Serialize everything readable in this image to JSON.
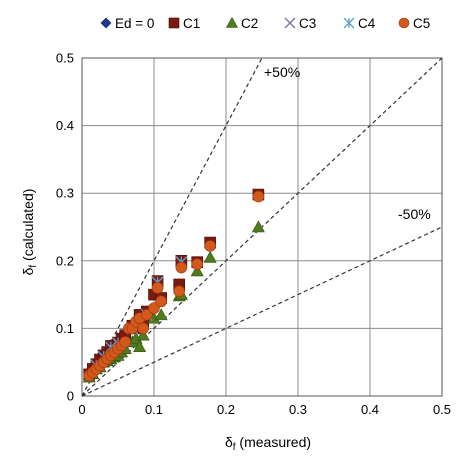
{
  "chart_data": {
    "type": "scatter",
    "title": "",
    "xlabel_main": "δ",
    "xlabel_sub": "f",
    "xlabel_rest": " (measured)",
    "ylabel_main": "δ",
    "ylabel_sub": "f",
    "ylabel_rest": " (calculated)",
    "xlim": [
      0,
      0.5
    ],
    "ylim": [
      0,
      0.5
    ],
    "x_ticks": [
      "0",
      "0.1",
      "0.2",
      "0.3",
      "0.4",
      "0.5"
    ],
    "y_ticks": [
      "0",
      "0.1",
      "0.2",
      "0.3",
      "0.4",
      "0.5"
    ],
    "tick_values": [
      0,
      0.1,
      0.2,
      0.3,
      0.4,
      0.5
    ],
    "grid": true,
    "legend_position": "top",
    "reference_lines": [
      {
        "label": "+50%",
        "slope": 2,
        "style": "dashed"
      },
      {
        "label": "",
        "slope": 1,
        "style": "dashed"
      },
      {
        "label": "-50%",
        "slope": 0.5,
        "style": "dashed"
      }
    ],
    "series": [
      {
        "name": "Ed = 0",
        "marker": "diamond",
        "color": "#1f3a8a",
        "x": [
          0.01,
          0.015,
          0.02,
          0.025,
          0.03,
          0.035,
          0.04,
          0.045,
          0.05,
          0.055,
          0.06,
          0.07,
          0.075,
          0.08,
          0.085,
          0.09,
          0.1,
          0.105,
          0.11,
          0.135,
          0.138,
          0.16,
          0.178,
          0.245
        ],
        "y": [
          0.033,
          0.04,
          0.048,
          0.055,
          0.06,
          0.065,
          0.075,
          0.07,
          0.08,
          0.085,
          0.09,
          0.105,
          0.1,
          0.12,
          0.11,
          0.125,
          0.15,
          0.17,
          0.145,
          0.165,
          0.2,
          0.198,
          0.227,
          0.298
        ]
      },
      {
        "name": "C1",
        "marker": "square",
        "color": "#7b1a10",
        "x": [
          0.01,
          0.015,
          0.02,
          0.025,
          0.03,
          0.035,
          0.04,
          0.045,
          0.05,
          0.055,
          0.06,
          0.07,
          0.075,
          0.08,
          0.085,
          0.09,
          0.1,
          0.105,
          0.11,
          0.135,
          0.138,
          0.16,
          0.178,
          0.245
        ],
        "y": [
          0.032,
          0.04,
          0.047,
          0.054,
          0.06,
          0.065,
          0.074,
          0.07,
          0.079,
          0.085,
          0.09,
          0.104,
          0.1,
          0.12,
          0.11,
          0.125,
          0.15,
          0.17,
          0.145,
          0.165,
          0.2,
          0.198,
          0.227,
          0.298
        ]
      },
      {
        "name": "C2",
        "marker": "triangle",
        "color": "#4f7a1e",
        "x": [
          0.01,
          0.015,
          0.02,
          0.025,
          0.03,
          0.035,
          0.04,
          0.045,
          0.05,
          0.055,
          0.06,
          0.07,
          0.075,
          0.08,
          0.085,
          0.1,
          0.11,
          0.135,
          0.138,
          0.16,
          0.178,
          0.245
        ],
        "y": [
          0.028,
          0.033,
          0.04,
          0.043,
          0.05,
          0.052,
          0.055,
          0.058,
          0.06,
          0.065,
          0.07,
          0.08,
          0.085,
          0.073,
          0.09,
          0.115,
          0.12,
          0.148,
          0.15,
          0.185,
          0.205,
          0.25
        ]
      },
      {
        "name": "C3",
        "marker": "x",
        "color": "#7b6fb0",
        "x": [
          0.02,
          0.03,
          0.04,
          0.05,
          0.07,
          0.09,
          0.105,
          0.138
        ],
        "y": [
          0.045,
          0.058,
          0.072,
          0.078,
          0.1,
          0.12,
          0.168,
          0.198
        ]
      },
      {
        "name": "C4",
        "marker": "star",
        "color": "#5aa0c8",
        "x": [
          0.02,
          0.03,
          0.04,
          0.05,
          0.07,
          0.09,
          0.105,
          0.138
        ],
        "y": [
          0.045,
          0.058,
          0.072,
          0.078,
          0.1,
          0.12,
          0.168,
          0.198
        ]
      },
      {
        "name": "C5",
        "marker": "circle",
        "color": "#d2581b",
        "x": [
          0.01,
          0.015,
          0.02,
          0.025,
          0.03,
          0.035,
          0.04,
          0.045,
          0.05,
          0.055,
          0.06,
          0.065,
          0.07,
          0.075,
          0.08,
          0.085,
          0.09,
          0.1,
          0.105,
          0.11,
          0.135,
          0.138,
          0.16,
          0.178,
          0.245
        ],
        "y": [
          0.03,
          0.035,
          0.04,
          0.045,
          0.05,
          0.055,
          0.06,
          0.065,
          0.07,
          0.075,
          0.08,
          0.1,
          0.1,
          0.11,
          0.115,
          0.1,
          0.12,
          0.13,
          0.16,
          0.14,
          0.155,
          0.19,
          0.195,
          0.222,
          0.295
        ]
      }
    ]
  }
}
